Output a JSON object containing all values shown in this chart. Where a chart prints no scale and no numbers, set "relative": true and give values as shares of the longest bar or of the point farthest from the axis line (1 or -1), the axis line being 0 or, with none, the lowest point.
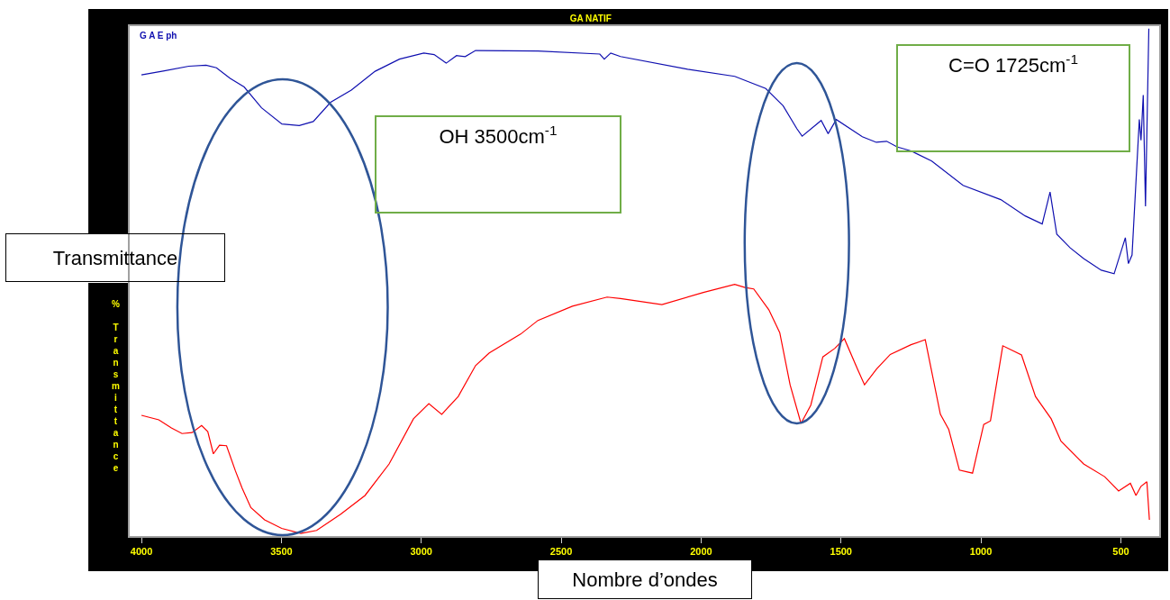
{
  "chart_data": {
    "type": "line",
    "title": "GA NATIF",
    "xlabel": "Nombre d’ondes",
    "ylabel": "% Transmittance",
    "relative": true,
    "legend": false,
    "xlim": [
      4042,
      363
    ],
    "xticks": [
      4000,
      3500,
      3000,
      2500,
      2000,
      1500,
      1000,
      500
    ],
    "annotations": [
      "Transmittance",
      "OH 3500cm$^{-1}$",
      "C=O 1725cm$^{-1}$"
    ],
    "series": [
      {
        "name": "G A E ph",
        "color": "#1010b0",
        "x": [
          4000,
          3918,
          3831,
          3769,
          3732,
          3683,
          3633,
          3571,
          3498,
          3436,
          3386,
          3324,
          3250,
          3165,
          3078,
          2991,
          2954,
          2911,
          2874,
          2843,
          2806,
          2583,
          2362,
          2346,
          2323,
          2288,
          2048,
          1880,
          1769,
          1707,
          1658,
          1639,
          1571,
          1546,
          1517,
          1424,
          1374,
          1337,
          1300,
          1250,
          1176,
          1064,
          929,
          842,
          781,
          753,
          729,
          681,
          633,
          570,
          524,
          484,
          473,
          460,
          434,
          428,
          420,
          412,
          400
        ],
        "values": [
          0.909,
          0.917,
          0.926,
          0.928,
          0.923,
          0.902,
          0.885,
          0.844,
          0.812,
          0.809,
          0.817,
          0.855,
          0.879,
          0.916,
          0.94,
          0.952,
          0.949,
          0.932,
          0.947,
          0.945,
          0.957,
          0.956,
          0.95,
          0.94,
          0.952,
          0.945,
          0.92,
          0.906,
          0.882,
          0.848,
          0.803,
          0.788,
          0.819,
          0.793,
          0.821,
          0.787,
          0.776,
          0.778,
          0.767,
          0.759,
          0.739,
          0.691,
          0.663,
          0.631,
          0.615,
          0.678,
          0.595,
          0.568,
          0.547,
          0.524,
          0.517,
          0.588,
          0.537,
          0.554,
          0.821,
          0.78,
          0.869,
          0.65,
          1.0
        ]
      },
      {
        "color": "#ff0000",
        "x": [
          4000,
          3938,
          3893,
          3855,
          3819,
          3785,
          3763,
          3743,
          3721,
          3696,
          3664,
          3640,
          3609,
          3560,
          3499,
          3430,
          3374,
          3288,
          3201,
          3115,
          3028,
          2973,
          2927,
          2868,
          2806,
          2757,
          2645,
          2583,
          2460,
          2336,
          2288,
          2140,
          1992,
          1880,
          1843,
          1812,
          1758,
          1719,
          1682,
          1643,
          1608,
          1565,
          1522,
          1488,
          1441,
          1416,
          1373,
          1324,
          1250,
          1199,
          1145,
          1115,
          1077,
          1030,
          990,
          966,
          922,
          855,
          805,
          749,
          714,
          633,
          558,
          508,
          466,
          446,
          428,
          407,
          398
        ],
        "values": [
          0.238,
          0.229,
          0.213,
          0.202,
          0.204,
          0.218,
          0.206,
          0.162,
          0.179,
          0.178,
          0.128,
          0.094,
          0.056,
          0.032,
          0.015,
          0.005,
          0.011,
          0.043,
          0.08,
          0.142,
          0.231,
          0.261,
          0.24,
          0.275,
          0.336,
          0.361,
          0.398,
          0.425,
          0.453,
          0.471,
          0.468,
          0.456,
          0.48,
          0.496,
          0.49,
          0.487,
          0.446,
          0.401,
          0.298,
          0.222,
          0.258,
          0.353,
          0.37,
          0.389,
          0.329,
          0.298,
          0.329,
          0.358,
          0.377,
          0.387,
          0.24,
          0.21,
          0.13,
          0.124,
          0.22,
          0.227,
          0.375,
          0.357,
          0.275,
          0.231,
          0.187,
          0.142,
          0.117,
          0.089,
          0.104,
          0.08,
          0.098,
          0.107,
          0.032
        ]
      }
    ]
  }
}
